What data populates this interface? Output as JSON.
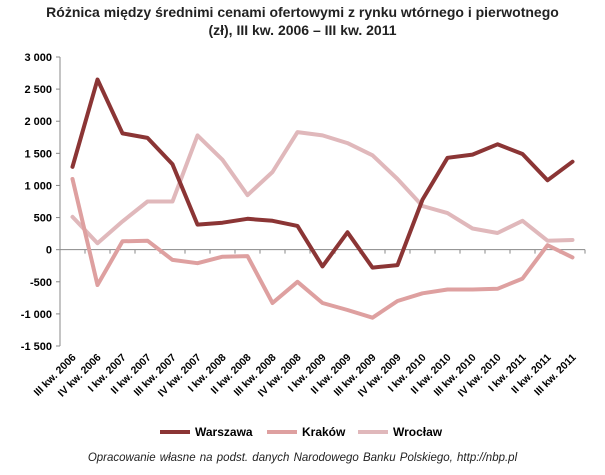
{
  "chart_data": {
    "type": "line",
    "title_line1": "Różnica między średnimi cenami ofertowymi z rynku wtórnego i pierwotnego",
    "title_line2": "(zł), III kw. 2006 – III kw. 2011",
    "xlabel": "",
    "ylabel": "",
    "ylim": [
      -1500,
      3000
    ],
    "yticks": [
      3000,
      2500,
      2000,
      1500,
      1000,
      500,
      0,
      -500,
      -1000,
      -1500
    ],
    "ytick_labels": [
      "3 000",
      "2 500",
      "2 000",
      "1 500",
      "1 000",
      "500",
      "0",
      "-500",
      "-1 000",
      "-1 500"
    ],
    "categories": [
      "III kw. 2006",
      "IV kw. 2006",
      "I kw. 2007",
      "II kw. 2007",
      "III kw. 2007",
      "IV kw. 2007",
      "I kw. 2008",
      "II kw. 2008",
      "III kw. 2008",
      "IV kw. 2008",
      "I kw. 2009",
      "II kw. 2009",
      "III kw. 2009",
      "IV kw. 2009",
      "I kw. 2010",
      "II kw. 2010",
      "III kw. 2010",
      "IV kw. 2010",
      "I kw. 2011",
      "II kw. 2011",
      "III kw. 2011"
    ],
    "grid": false,
    "legend_position": "bottom",
    "series": [
      {
        "name": "Warszawa",
        "color": "#8b3535",
        "values": [
          1290,
          2650,
          1810,
          1740,
          1330,
          390,
          420,
          480,
          450,
          370,
          -260,
          270,
          -280,
          -240,
          780,
          1430,
          1480,
          1640,
          1490,
          1080,
          1370
        ]
      },
      {
        "name": "Kraków",
        "color": "#dea0a0",
        "values": [
          1100,
          -550,
          130,
          140,
          -160,
          -210,
          -110,
          -100,
          -830,
          -500,
          -830,
          -940,
          -1060,
          -800,
          -680,
          -620,
          -620,
          -610,
          -450,
          70,
          -120
        ]
      },
      {
        "name": "Wrocław",
        "color": "#e0b8bb",
        "values": [
          510,
          100,
          440,
          750,
          750,
          1780,
          1400,
          850,
          1210,
          1830,
          1780,
          1660,
          1470,
          1100,
          680,
          570,
          330,
          260,
          450,
          140,
          150
        ]
      }
    ]
  },
  "source_note": "Opracowanie  własne  na podst.  danych Narodowego  Banku Polskiego, http://nbp.pl"
}
